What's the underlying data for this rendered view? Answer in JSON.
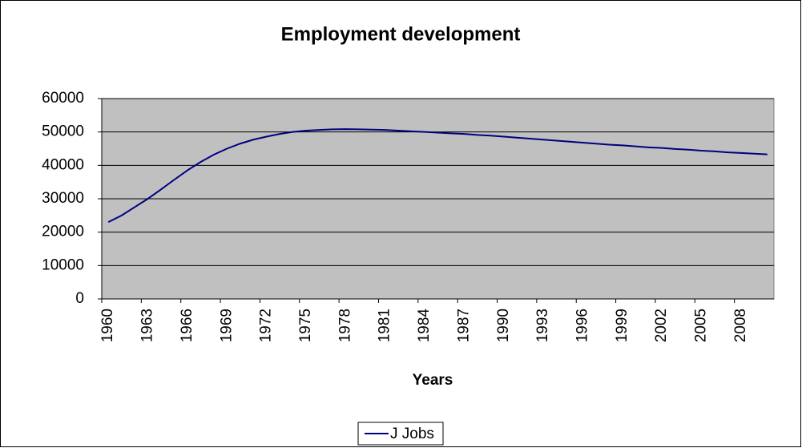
{
  "chart_data": {
    "type": "line",
    "title": "Employment development",
    "x_label": "Years",
    "categories": [
      1960,
      null,
      null,
      1963,
      null,
      null,
      1966,
      null,
      null,
      1969,
      null,
      null,
      1972,
      null,
      null,
      1975,
      null,
      null,
      1978,
      null,
      null,
      1981,
      null,
      null,
      1984,
      null,
      null,
      1987,
      null,
      null,
      1990,
      null,
      null,
      1993,
      null,
      null,
      1996,
      null,
      null,
      1999,
      null,
      null,
      2002,
      null,
      null,
      2005,
      null,
      null,
      2008,
      null,
      null
    ],
    "series": [
      {
        "name": "J Jobs",
        "color": "#000080",
        "values": [
          23000,
          25000,
          27500,
          30000,
          32800,
          35700,
          38500,
          41000,
          43200,
          45000,
          46500,
          47700,
          48600,
          49400,
          50000,
          50400,
          50600,
          50800,
          50850,
          50800,
          50700,
          50600,
          50400,
          50200,
          50000,
          49800,
          49600,
          49400,
          49100,
          48900,
          48600,
          48300,
          48000,
          47700,
          47400,
          47100,
          46800,
          46500,
          46200,
          46000,
          45700,
          45400,
          45200,
          44900,
          44700,
          44400,
          44200,
          43900,
          43700,
          43500,
          43300
        ]
      }
    ],
    "ylim": [
      0,
      60000
    ],
    "yticks": [
      0,
      10000,
      20000,
      30000,
      40000,
      50000,
      60000
    ],
    "grid": true,
    "legend": "bottom"
  }
}
